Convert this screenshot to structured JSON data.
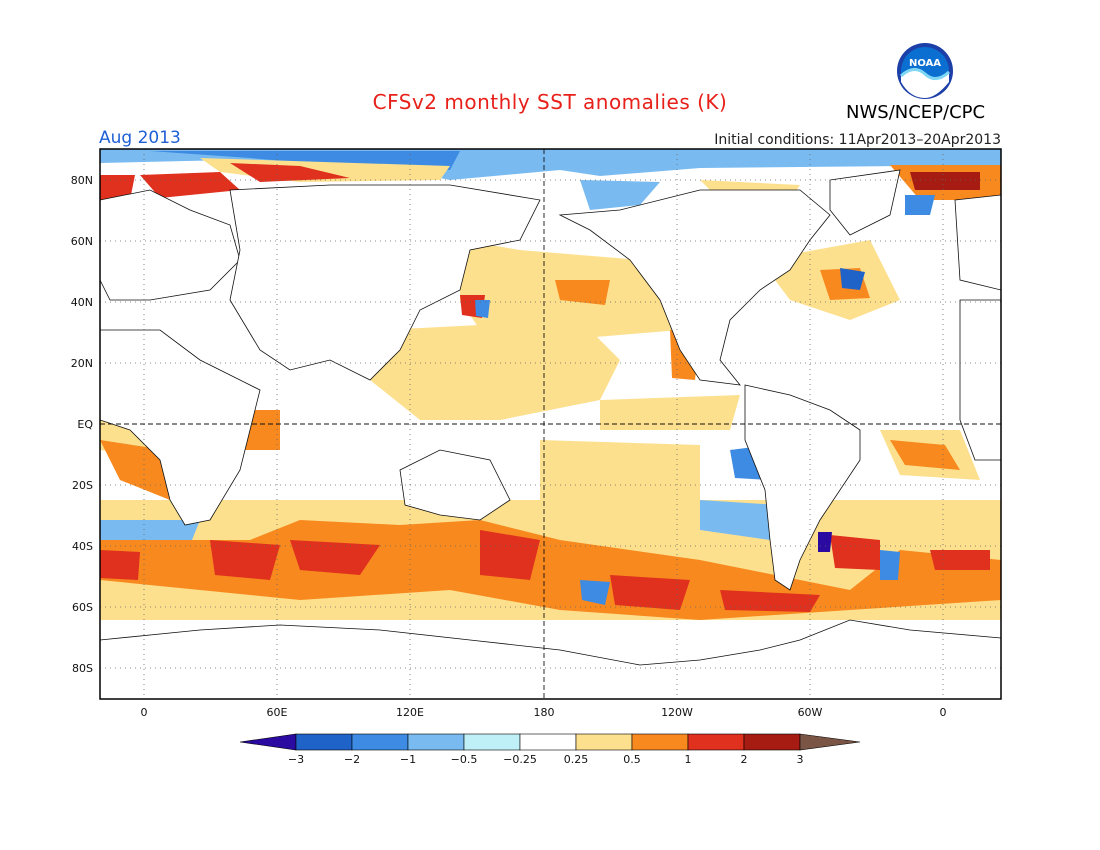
{
  "header": {
    "title": "CFSv2 monthly SST anomalies (K)",
    "month": "Aug 2013",
    "initial_conditions": "Initial conditions: 11Apr2013–20Apr2013",
    "agency": "NWS/NCEP/CPC",
    "logo_icon": "noaa-logo-icon",
    "logo_text": "NOAA"
  },
  "map": {
    "y_ticks": [
      "80N",
      "60N",
      "40N",
      "20N",
      "EQ",
      "20S",
      "40S",
      "60S",
      "80S"
    ],
    "x_ticks": [
      "0",
      "60E",
      "120E",
      "180",
      "120W",
      "60W",
      "0"
    ]
  },
  "colorbar": {
    "labels": [
      "−3",
      "−2",
      "−1",
      "−0.5",
      "−0.25",
      "0.25",
      "0.5",
      "1",
      "2",
      "3"
    ],
    "colors": [
      "#2a0aa0",
      "#1f63c8",
      "#3d8be3",
      "#79bbf1",
      "#bff0f7",
      "#ffffff",
      "#fde08e",
      "#f7891f",
      "#e0301e",
      "#a61c12",
      "#7a5545"
    ]
  }
}
